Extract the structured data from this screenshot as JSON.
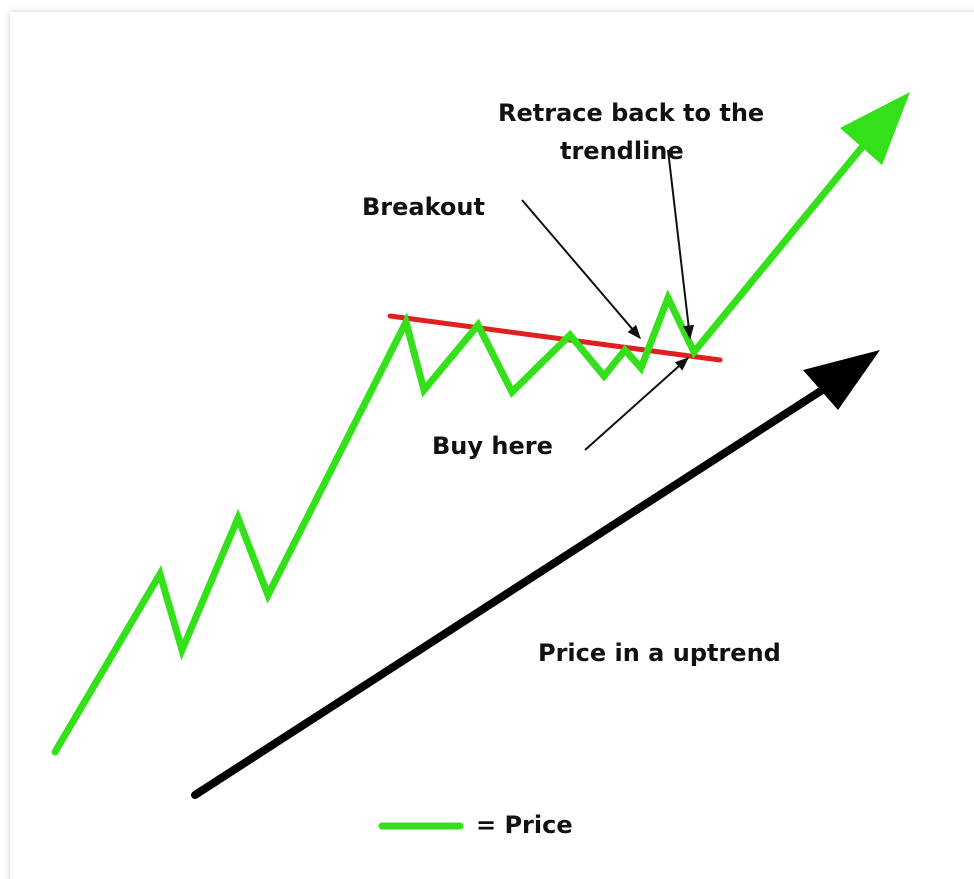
{
  "annotations": {
    "retrace": [
      "Retrace back to the",
      "trendline"
    ],
    "breakout": "Breakout",
    "buy": "Buy here",
    "trend": "Price in a uptrend"
  },
  "legend": {
    "label": "= Price"
  }
}
